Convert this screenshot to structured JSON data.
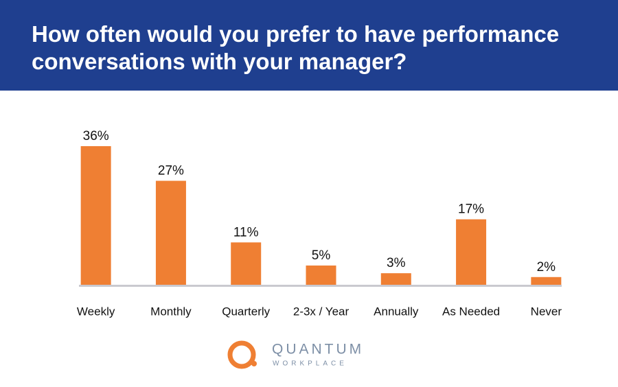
{
  "chart_data": {
    "type": "bar",
    "title": "How often would you prefer to have performance conversations with your manager?",
    "categories": [
      "Weekly",
      "Monthly",
      "Quarterly",
      "2-3x / Year",
      "Annually",
      "As Needed",
      "Never"
    ],
    "values": [
      36,
      27,
      11,
      5,
      3,
      17,
      2
    ],
    "value_labels": [
      "36%",
      "27%",
      "11%",
      "5%",
      "3%",
      "17%",
      "2%"
    ],
    "color": "#ef7f33"
  },
  "logo": {
    "name": "QUANTUM",
    "subname": "WORKPLACE"
  }
}
